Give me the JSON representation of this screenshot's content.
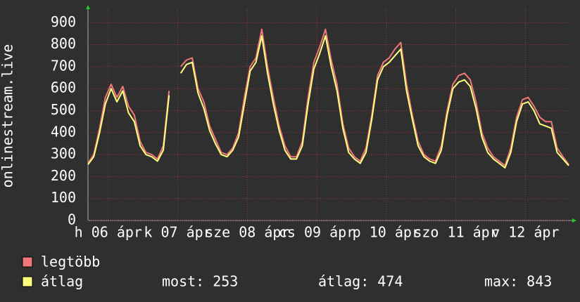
{
  "chart_data": {
    "type": "line",
    "y_label": "onlinestream.live",
    "xlim": [
      0,
      83
    ],
    "xticks": [
      {
        "value": 3.5,
        "label": "h 06 ápr"
      },
      {
        "value": 15.5,
        "label": "k 07 ápr"
      },
      {
        "value": 27.5,
        "label": "sze 08 ápr"
      },
      {
        "value": 39.5,
        "label": "cs 09 ápr"
      },
      {
        "value": 51.5,
        "label": "p 10 ápr"
      },
      {
        "value": 63.5,
        "label": "szo 11 ápr"
      },
      {
        "value": 75.5,
        "label": "v 12 ápr"
      }
    ],
    "ylim": [
      0,
      965
    ],
    "yticks": [
      0,
      100,
      200,
      300,
      400,
      500,
      600,
      700,
      800,
      900
    ],
    "grid": true,
    "series": [
      {
        "name": "legtöbb",
        "color": "#f07878",
        "values": [
          260,
          300,
          420,
          560,
          620,
          560,
          610,
          520,
          480,
          360,
          310,
          300,
          280,
          340,
          590,
          null,
          700,
          730,
          740,
          600,
          540,
          430,
          370,
          310,
          300,
          330,
          400,
          560,
          700,
          740,
          870,
          700,
          560,
          430,
          340,
          290,
          290,
          360,
          560,
          720,
          790,
          870,
          730,
          620,
          440,
          330,
          290,
          270,
          330,
          480,
          660,
          720,
          740,
          780,
          810,
          620,
          480,
          360,
          300,
          280,
          270,
          340,
          500,
          620,
          660,
          670,
          640,
          540,
          400,
          330,
          290,
          270,
          250,
          330,
          470,
          550,
          560,
          520,
          470,
          450,
          450,
          330,
          290,
          255
        ]
      },
      {
        "name": "átlag",
        "color": "#ffff80",
        "values": [
          255,
          290,
          400,
          530,
          600,
          540,
          590,
          490,
          450,
          340,
          300,
          290,
          270,
          320,
          570,
          null,
          670,
          710,
          720,
          580,
          510,
          410,
          350,
          300,
          290,
          320,
          380,
          530,
          680,
          720,
          840,
          670,
          530,
          410,
          320,
          280,
          280,
          340,
          530,
          690,
          760,
          840,
          700,
          590,
          420,
          310,
          280,
          260,
          310,
          460,
          640,
          700,
          720,
          750,
          780,
          590,
          460,
          340,
          290,
          270,
          260,
          320,
          480,
          600,
          630,
          640,
          610,
          510,
          380,
          310,
          280,
          260,
          240,
          310,
          450,
          530,
          540,
          500,
          440,
          430,
          420,
          310,
          280,
          250
        ]
      }
    ],
    "stats": [
      {
        "label": "most:",
        "value": 253
      },
      {
        "label": "átlag:",
        "value": 474
      },
      {
        "label": "max:",
        "value": 843
      }
    ]
  }
}
